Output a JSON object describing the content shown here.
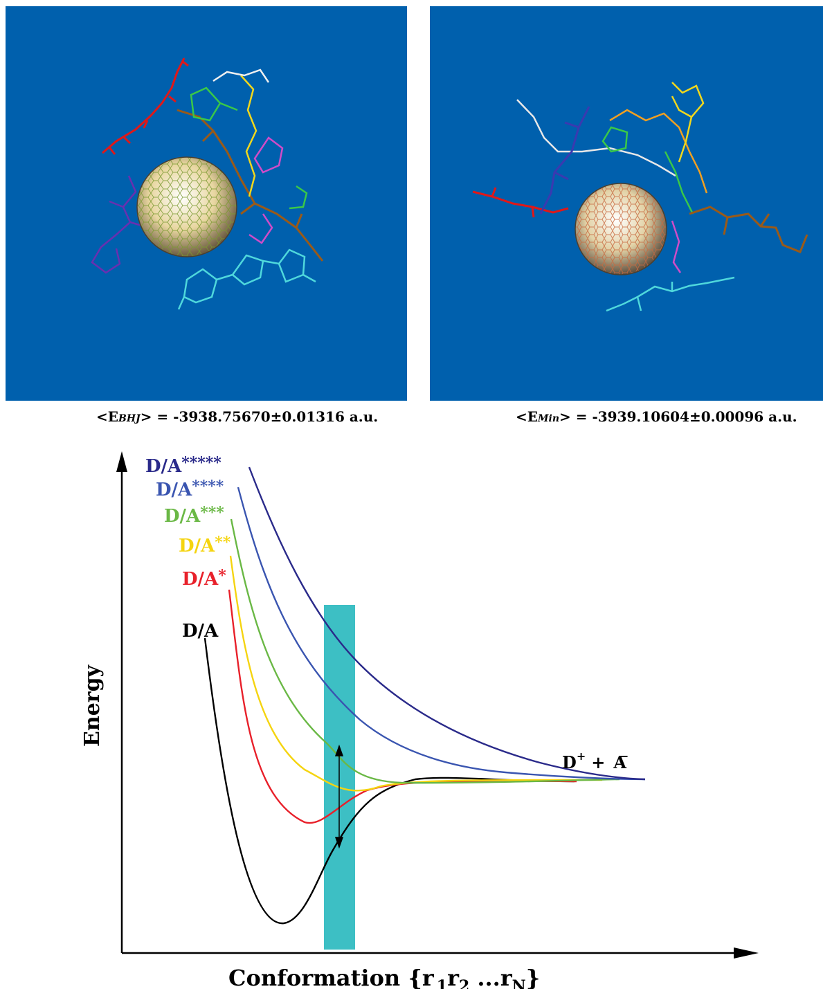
{
  "captions": {
    "left": {
      "prefix": "<E",
      "sub": "BHJ",
      "suffix": "> = -3938.75670±0.01316 a.u."
    },
    "right": {
      "prefix": "<E",
      "sub": "Min",
      "suffix": "> = -3939.10604±0.00096 a.u."
    }
  },
  "diagram": {
    "y_axis_label": "Energy",
    "x_axis_label": {
      "main": "Conformation {r",
      "s1": "1",
      "m1": "r",
      "s2": "2",
      "m2": " ...r",
      "s3": "N",
      "end": "}"
    },
    "product_label": {
      "d": "D",
      "d_sup": "+",
      "plus": "+",
      "a": "A",
      "a_sup": "−"
    },
    "states": [
      {
        "base": "D/A",
        "stars": "",
        "color": "#000000"
      },
      {
        "base": "D/A",
        "stars": "*",
        "color": "#e8202a"
      },
      {
        "base": "D/A",
        "stars": "**",
        "color": "#f5d410"
      },
      {
        "base": "D/A",
        "stars": "***",
        "color": "#6ab845"
      },
      {
        "base": "D/A",
        "stars": "****",
        "color": "#3a55b0"
      },
      {
        "base": "D/A",
        "stars": "*****",
        "color": "#2a2a8a"
      }
    ],
    "band_color": "#3dbfc4",
    "panel_color": "#0060ad"
  }
}
